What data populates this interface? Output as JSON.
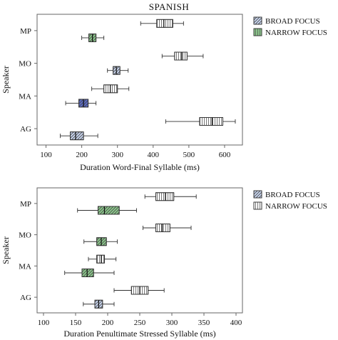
{
  "page_title": "SPANISH",
  "colors": {
    "broad": "#c9d6f0",
    "broad_highlight": "#5a6bc8",
    "narrow": "#ffffff",
    "narrow_highlight": "#8cc98c",
    "frame": "#666666"
  },
  "chart_data": [
    {
      "type": "boxplot",
      "title": "SPANISH",
      "xlabel": "Duration Word-Final Syllable (ms)",
      "ylabel": "Speaker",
      "xlim": [
        75,
        650
      ],
      "xticks": [
        100,
        200,
        300,
        400,
        500,
        600
      ],
      "categories": [
        "MP",
        "MO",
        "MA",
        "AG"
      ],
      "legend": {
        "placement": "right",
        "entries": [
          "BROAD FOCUS",
          "NARROW FOCUS"
        ]
      },
      "boxes": [
        {
          "speaker": "MP",
          "focus": "narrow",
          "min": 365,
          "q1": 410,
          "median": 430,
          "q3": 455,
          "max": 485
        },
        {
          "speaker": "MP",
          "focus": "broad",
          "min": 200,
          "q1": 220,
          "median": 230,
          "q3": 240,
          "max": 262,
          "highlight": "green"
        },
        {
          "speaker": "MO",
          "focus": "narrow",
          "min": 425,
          "q1": 460,
          "median": 480,
          "q3": 495,
          "max": 540
        },
        {
          "speaker": "MO",
          "focus": "broad",
          "min": 272,
          "q1": 288,
          "median": 297,
          "q3": 307,
          "max": 330
        },
        {
          "speaker": "MA",
          "focus": "narrow",
          "min": 228,
          "q1": 262,
          "median": 280,
          "q3": 300,
          "max": 332
        },
        {
          "speaker": "MA",
          "focus": "broad",
          "min": 155,
          "q1": 192,
          "median": 205,
          "q3": 218,
          "max": 240,
          "highlight": "blue"
        },
        {
          "speaker": "AG",
          "focus": "narrow",
          "min": 435,
          "q1": 530,
          "median": 565,
          "q3": 595,
          "max": 630
        },
        {
          "speaker": "AG",
          "focus": "broad",
          "min": 140,
          "q1": 168,
          "median": 183,
          "q3": 205,
          "max": 245
        }
      ]
    },
    {
      "type": "boxplot",
      "xlabel": "Duration Penultimate Stressed Syllable (ms)",
      "ylabel": "Speaker",
      "xlim": [
        90,
        410
      ],
      "xticks": [
        100,
        150,
        200,
        250,
        300,
        350,
        400
      ],
      "categories": [
        "MP",
        "MO",
        "MA",
        "AG"
      ],
      "legend": {
        "placement": "right",
        "entries": [
          "BROAD FOCUS",
          "NARROW FOCUS"
        ]
      },
      "boxes": [
        {
          "speaker": "MP",
          "focus": "narrow",
          "min": 258,
          "q1": 275,
          "median": 290,
          "q3": 303,
          "max": 338
        },
        {
          "speaker": "MP",
          "focus": "broad",
          "min": 153,
          "q1": 185,
          "median": 195,
          "q3": 218,
          "max": 245,
          "highlight": "green"
        },
        {
          "speaker": "MO",
          "focus": "narrow",
          "min": 255,
          "q1": 275,
          "median": 285,
          "q3": 297,
          "max": 330
        },
        {
          "speaker": "MO",
          "focus": "broad",
          "min": 163,
          "q1": 183,
          "median": 190,
          "q3": 198,
          "max": 215,
          "highlight": "green"
        },
        {
          "speaker": "MA",
          "focus": "narrow",
          "min": 170,
          "q1": 183,
          "median": 190,
          "q3": 195,
          "max": 213
        },
        {
          "speaker": "MA",
          "focus": "broad",
          "min": 133,
          "q1": 160,
          "median": 168,
          "q3": 178,
          "max": 210,
          "highlight": "green"
        },
        {
          "speaker": "AG",
          "focus": "narrow",
          "min": 210,
          "q1": 237,
          "median": 250,
          "q3": 263,
          "max": 288
        },
        {
          "speaker": "AG",
          "focus": "broad",
          "min": 162,
          "q1": 180,
          "median": 186,
          "q3": 192,
          "max": 210
        }
      ]
    }
  ]
}
